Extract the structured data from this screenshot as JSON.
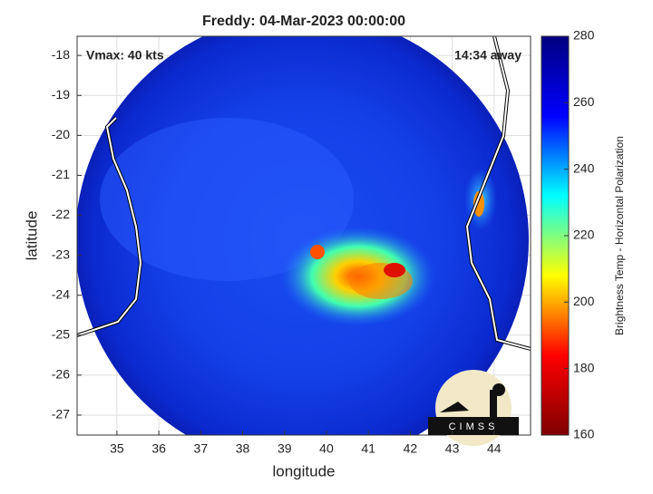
{
  "chart_data": {
    "type": "image",
    "title": "Freddy: 04-Mar-2023 00:00:00",
    "annotations": [
      "Vmax: 40 kts",
      "14:34 away"
    ],
    "x_label": "longitude",
    "y_label": "latitude",
    "xlim": [
      34.05,
      44.87
    ],
    "xticks": [
      35,
      36,
      37,
      38,
      39,
      40,
      41,
      42,
      43,
      44
    ],
    "ylim": [
      -27.5,
      -17.52
    ],
    "yticks": [
      -27,
      -26,
      -25,
      -24,
      -23,
      -22,
      -21,
      -20,
      -19,
      -18
    ],
    "grid": true,
    "colorbar": {
      "label": "Brightness Temp - Horizontal Polarization",
      "lim": [
        160,
        280
      ],
      "ticks": [
        160,
        180,
        200,
        220,
        240,
        260,
        280
      ],
      "colormap": [
        "#7f0000",
        "#ff0000",
        "#ffff00",
        "#00ffff",
        "#0000ff",
        "#00007f"
      ]
    },
    "logo": "CIMSS"
  }
}
